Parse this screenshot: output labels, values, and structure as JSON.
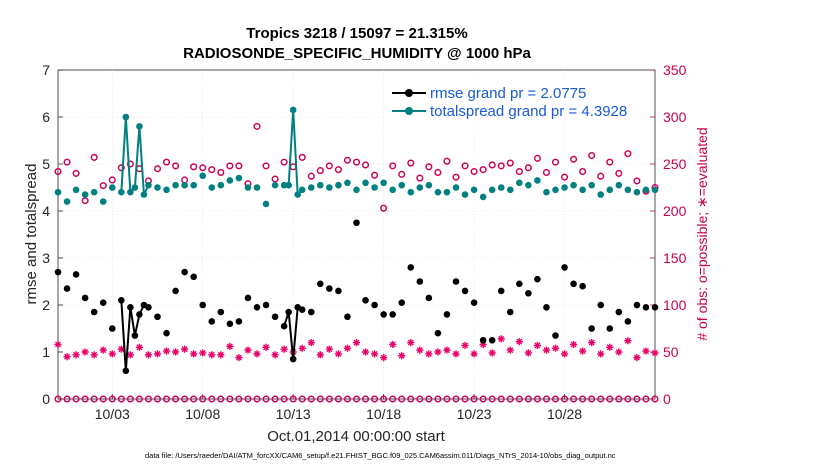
{
  "chart_data": {
    "type": "line",
    "title_line1": "Tropics 3218 / 15097 = 21.315%",
    "title_line2": "RADIOSONDE_SPECIFIC_HUMIDITY @ 1000 hPa",
    "xlabel": "Oct.01,2014 00:00:00 start",
    "ylabel_left": "rmse and totalspread",
    "ylabel_right": "# of obs: o=possible; ∗=evaluated",
    "footnote": "data file: /Users/raeder/DAI/ATM_forcXX/CAM6_setup/f.e21.FHIST_BGC.f09_025.CAM6assim.011/Diags_NTrS_2014-10/obs_diag_output.nc",
    "xlim": [
      0.5,
      33.5
    ],
    "ylim_left": [
      0,
      7
    ],
    "ylim_right": [
      0,
      350
    ],
    "x_ticks": [
      3.5,
      8.5,
      13.5,
      18.5,
      23.5,
      28.5
    ],
    "x_tick_labels": [
      "10/03",
      "10/08",
      "10/13",
      "10/18",
      "10/23",
      "10/28"
    ],
    "y_left_ticks": [
      "0",
      "1",
      "2",
      "3",
      "4",
      "5",
      "6",
      "7"
    ],
    "y_right_ticks": [
      "0",
      "50",
      "100",
      "150",
      "200",
      "250",
      "300",
      "350"
    ],
    "colors": {
      "rmse": "#000000",
      "totalspread": "#008080",
      "possible": "#cc0055",
      "evaluated": "#e8006a",
      "legend_text": "#1a5ad6",
      "right_axis": "#c8004f"
    },
    "series": [
      {
        "name": "rmse",
        "legend": "rmse grand pr = 2.0775",
        "x": [
          0.5,
          1,
          1.5,
          2,
          2.5,
          3,
          3.5,
          4,
          4.25,
          4.5,
          4.75,
          5,
          5.25,
          5.5,
          6,
          6.5,
          7,
          7.5,
          8,
          8.5,
          9,
          9.5,
          10,
          10.5,
          11,
          11.5,
          12,
          12.5,
          13,
          13.25,
          13.5,
          13.75,
          14,
          14.5,
          15,
          15.5,
          16,
          16.5,
          17,
          17.5,
          18,
          18.5,
          19,
          19.5,
          20,
          20.5,
          21,
          21.5,
          22,
          22.5,
          23,
          23.5,
          24,
          24.5,
          25,
          25.5,
          26,
          26.5,
          27,
          27.5,
          28,
          28.5,
          29,
          29.5,
          30,
          30.5,
          31,
          31.5,
          32,
          32.5,
          33,
          33.5
        ],
        "values": [
          2.7,
          2.35,
          2.65,
          2.15,
          1.85,
          2.05,
          1.5,
          2.1,
          0.6,
          1.95,
          1.35,
          1.8,
          2.0,
          1.95,
          1.75,
          1.4,
          2.3,
          2.7,
          2.6,
          2.0,
          1.65,
          1.85,
          1.6,
          1.65,
          2.15,
          1.95,
          2.0,
          1.75,
          1.55,
          1.85,
          0.85,
          1.95,
          1.9,
          1.85,
          2.45,
          2.35,
          2.3,
          1.75,
          3.75,
          2.1,
          2.0,
          1.8,
          1.8,
          2.05,
          2.8,
          2.5,
          2.15,
          1.4,
          1.8,
          2.5,
          2.3,
          2.05,
          1.25,
          1.25,
          2.3,
          1.85,
          2.45,
          2.25,
          2.55,
          1.95,
          1.35,
          2.8,
          2.45,
          2.4,
          1.5,
          2.0,
          1.5,
          1.85,
          1.65,
          2.0,
          1.95,
          1.95
        ]
      },
      {
        "name": "totalspread",
        "legend": "totalspread grand pr = 4.3928",
        "x": [
          0.5,
          1,
          1.5,
          2,
          2.5,
          3,
          3.5,
          4,
          4.25,
          4.5,
          4.75,
          5,
          5.25,
          5.5,
          6,
          6.5,
          7,
          7.5,
          8,
          8.5,
          9,
          9.5,
          10,
          10.5,
          11,
          11.5,
          12,
          12.5,
          13,
          13.25,
          13.5,
          13.75,
          14,
          14.5,
          15,
          15.5,
          16,
          16.5,
          17,
          17.5,
          18,
          18.5,
          19,
          19.5,
          20,
          20.5,
          21,
          21.5,
          22,
          22.5,
          23,
          23.5,
          24,
          24.5,
          25,
          25.5,
          26,
          26.5,
          27,
          27.5,
          28,
          28.5,
          29,
          29.5,
          30,
          30.5,
          31,
          31.5,
          32,
          32.5,
          33,
          33.5
        ],
        "values": [
          4.4,
          4.2,
          4.45,
          4.35,
          4.4,
          4.2,
          4.5,
          4.4,
          6.0,
          4.4,
          4.5,
          5.8,
          4.35,
          4.55,
          4.5,
          4.45,
          4.55,
          4.55,
          4.55,
          4.75,
          4.5,
          4.55,
          4.65,
          4.7,
          4.5,
          4.5,
          4.15,
          4.55,
          4.55,
          4.55,
          6.15,
          4.35,
          4.45,
          4.5,
          4.55,
          4.5,
          4.55,
          4.6,
          4.45,
          4.6,
          4.5,
          4.6,
          4.45,
          4.55,
          4.4,
          4.5,
          4.55,
          4.4,
          4.4,
          4.5,
          4.35,
          4.45,
          4.3,
          4.45,
          4.5,
          4.45,
          4.6,
          4.55,
          4.65,
          4.4,
          4.45,
          4.5,
          4.55,
          4.45,
          4.55,
          4.35,
          4.45,
          4.55,
          4.45,
          4.4,
          4.45,
          4.45
        ]
      },
      {
        "name": "obs_possible",
        "x": [
          0.5,
          1,
          1.5,
          2,
          2.5,
          3,
          3.5,
          4,
          4.5,
          5,
          5.5,
          6,
          6.5,
          7,
          7.5,
          8,
          8.5,
          9,
          9.5,
          10,
          10.5,
          11,
          11.5,
          12,
          12.5,
          13,
          13.5,
          14,
          14.5,
          15,
          15.5,
          16,
          16.5,
          17,
          17.5,
          18,
          18.5,
          19,
          19.5,
          20,
          20.5,
          21,
          21.5,
          22,
          22.5,
          23,
          23.5,
          24,
          24.5,
          25,
          25.5,
          26,
          26.5,
          27,
          27.5,
          28,
          28.5,
          29,
          29.5,
          30,
          30.5,
          31,
          31.5,
          32,
          32.5,
          33,
          33.5
        ],
        "values": [
          242,
          252,
          240,
          211,
          257,
          227,
          233,
          246,
          250,
          245,
          232,
          245,
          252,
          248,
          233,
          247,
          246,
          244,
          241,
          248,
          248,
          229,
          290,
          248,
          234,
          252,
          247,
          257,
          237,
          243,
          248,
          244,
          254,
          252,
          249,
          238,
          203,
          248,
          239,
          251,
          235,
          247,
          241,
          253,
          236,
          248,
          242,
          244,
          249,
          248,
          251,
          242,
          246,
          256,
          241,
          252,
          236,
          255,
          242,
          259,
          237,
          252,
          240,
          261,
          232,
          221,
          225
        ],
        "extra_labels": [
          0
        ]
      },
      {
        "name": "obs_evaluated",
        "x": [
          0.5,
          1,
          1.5,
          2,
          2.5,
          3,
          3.5,
          4,
          4.5,
          5,
          5.5,
          6,
          6.5,
          7,
          7.5,
          8,
          8.5,
          9,
          9.5,
          10,
          10.5,
          11,
          11.5,
          12,
          12.5,
          13,
          13.5,
          14,
          14.5,
          15,
          15.5,
          16,
          16.5,
          17,
          17.5,
          18,
          18.5,
          19,
          19.5,
          20,
          20.5,
          21,
          21.5,
          22,
          22.5,
          23,
          23.5,
          24,
          24.5,
          25,
          25.5,
          26,
          26.5,
          27,
          27.5,
          28,
          28.5,
          29,
          29.5,
          30,
          30.5,
          31,
          31.5,
          32,
          32.5,
          33,
          33.5
        ],
        "values": [
          58,
          45,
          47,
          50,
          47,
          52,
          48,
          53,
          47,
          55,
          47,
          48,
          51,
          50,
          53,
          48,
          49,
          47,
          47,
          56,
          44,
          52,
          48,
          55,
          47,
          53,
          50,
          54,
          60,
          47,
          53,
          48,
          54,
          60,
          50,
          48,
          44,
          58,
          46,
          60,
          52,
          48,
          50,
          52,
          48,
          57,
          48,
          58,
          49,
          64,
          52,
          61,
          49,
          57,
          52,
          54,
          48,
          58,
          51,
          60,
          48,
          55,
          50,
          62,
          44,
          51,
          49
        ]
      }
    ]
  },
  "legend": {
    "rmse_label": "rmse grand pr = 2.0775",
    "spread_label": "totalspread grand pr = 4.3928"
  }
}
